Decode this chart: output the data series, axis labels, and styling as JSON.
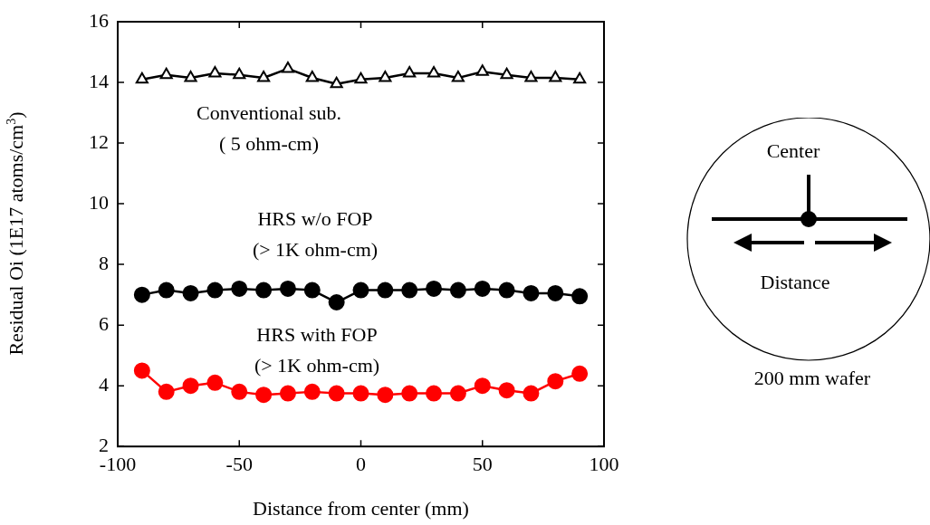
{
  "chart_data": {
    "type": "line",
    "xlabel": "Distance from center (mm)",
    "ylabel": "Residual Oi (1E17 atoms/cm$^{3}$)",
    "x": [
      -90,
      -80,
      -70,
      -60,
      -50,
      -40,
      -30,
      -20,
      -10,
      0,
      10,
      20,
      30,
      40,
      50,
      60,
      70,
      80,
      90
    ],
    "series": [
      {
        "name": "Conventional sub.\n( 5 ohm-cm)",
        "color": "#000000",
        "marker": "triangle",
        "values": [
          14.1,
          14.25,
          14.15,
          14.3,
          14.25,
          14.15,
          14.45,
          14.15,
          13.95,
          14.1,
          14.15,
          14.3,
          14.3,
          14.15,
          14.35,
          14.25,
          14.15,
          14.15,
          14.1
        ]
      },
      {
        "name": "HRS w/o FOP\n(> 1K ohm-cm)",
        "color": "#000000",
        "marker": "circle",
        "values": [
          7.0,
          7.15,
          7.05,
          7.15,
          7.2,
          7.15,
          7.2,
          7.15,
          6.75,
          7.15,
          7.15,
          7.15,
          7.2,
          7.15,
          7.2,
          7.15,
          7.05,
          7.05,
          6.95
        ]
      },
      {
        "name": "HRS with FOP\n(> 1K ohm-cm)",
        "color": "#ff0000",
        "marker": "circle",
        "values": [
          4.5,
          3.8,
          4.0,
          4.1,
          3.8,
          3.7,
          3.75,
          3.8,
          3.75,
          3.75,
          3.7,
          3.75,
          3.75,
          3.75,
          4.0,
          3.85,
          3.75,
          4.15,
          4.4
        ]
      }
    ],
    "xlim": [
      -100,
      100
    ],
    "xticks": [
      -100,
      -50,
      0,
      50,
      100
    ],
    "ylim": [
      2,
      16
    ],
    "yticks": [
      2,
      4,
      6,
      8,
      10,
      12,
      14,
      16
    ],
    "grid": false,
    "legend": false,
    "line_style": "solid",
    "annotations": [
      "Center",
      "Distance",
      "200 mm wafer"
    ]
  }
}
